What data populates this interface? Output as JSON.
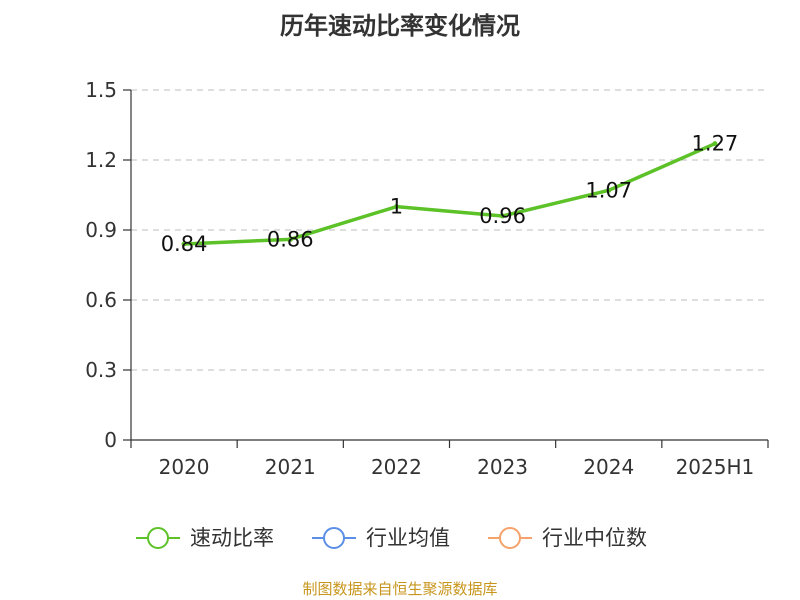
{
  "chart_data": {
    "type": "line",
    "title": "历年速动比率变化情况",
    "categories": [
      "2020",
      "2021",
      "2022",
      "2023",
      "2024",
      "2025H1"
    ],
    "series": [
      {
        "name": "速动比率",
        "values": [
          0.84,
          0.86,
          1,
          0.96,
          1.07,
          1.27
        ],
        "color": "#5cc228"
      }
    ],
    "y_ticks": [
      "0",
      "0.3",
      "0.6",
      "0.9",
      "1.2",
      "1.5"
    ],
    "ylim": [
      0,
      1.5
    ],
    "grid": true,
    "legend": [
      {
        "name": "速动比率",
        "color": "#5cc228"
      },
      {
        "name": "行业均值",
        "color": "#5b8fe6"
      },
      {
        "name": "行业中位数",
        "color": "#f5a26b"
      }
    ],
    "legend_position": "bottom"
  },
  "footer": {
    "source": "制图数据来自恒生聚源数据库"
  }
}
